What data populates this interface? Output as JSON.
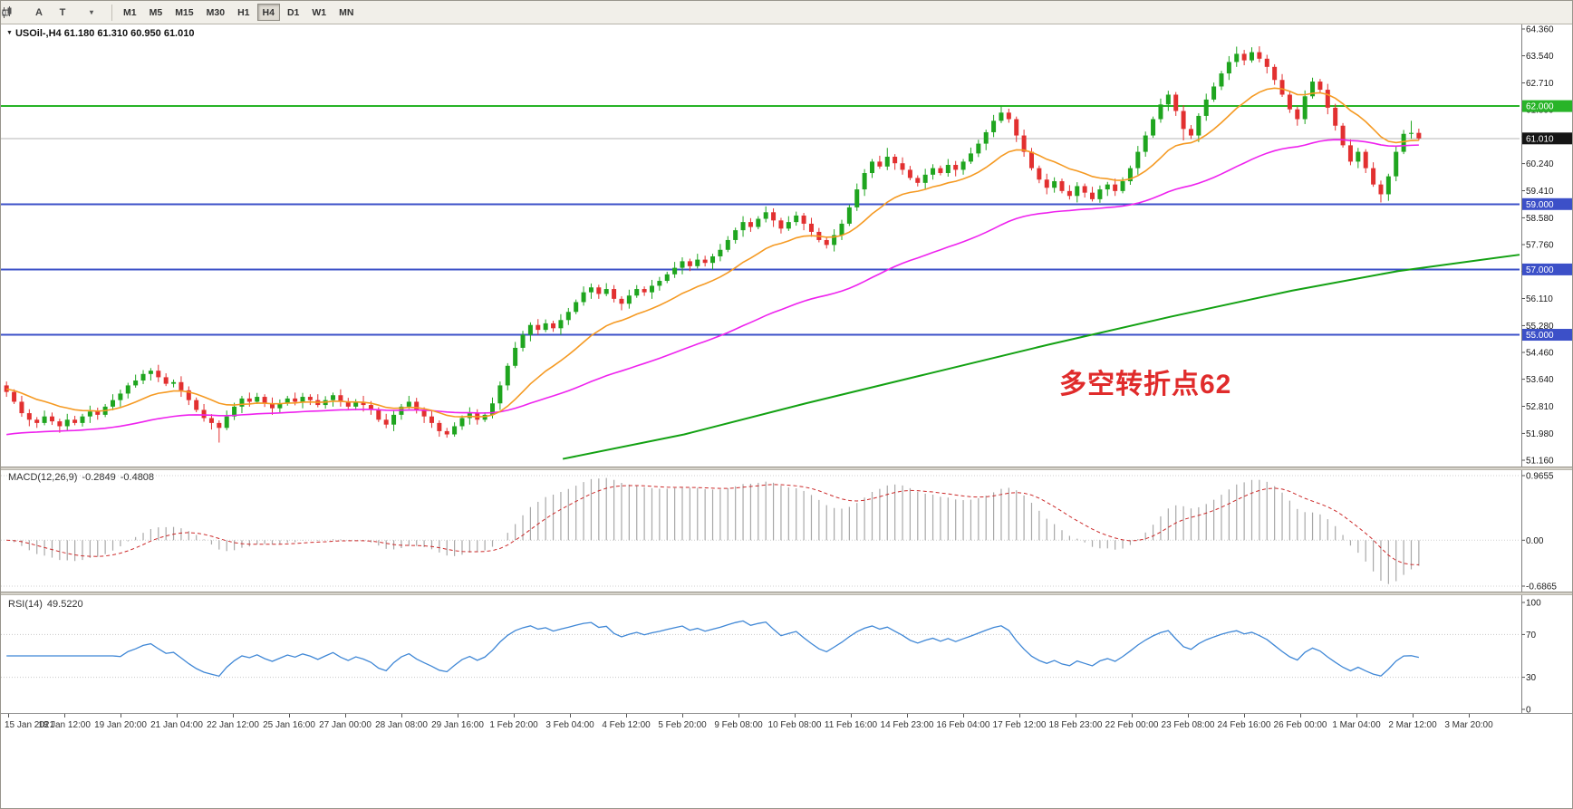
{
  "icons": {
    "title_marker": "▼",
    "caret": "▾"
  },
  "toolbar": {
    "tools": {
      "a_label": "A",
      "t_label": "T"
    },
    "timeframes": [
      "M1",
      "M5",
      "M15",
      "M30",
      "H1",
      "H4",
      "D1",
      "W1",
      "MN"
    ],
    "active_timeframe": "H4"
  },
  "main_chart": {
    "title": "USOil-,H4 61.180 61.310 60.950 61.010",
    "annotation": {
      "text": "多空转折点62",
      "color": "#e02b2b"
    }
  },
  "macd_panel": {
    "label": "MACD(12,26,9)",
    "main_value": "-0.2849",
    "signal_value": "-0.4808",
    "axis_labels": [
      "0.9655",
      "0.00",
      "-0.6865"
    ]
  },
  "rsi_panel": {
    "label": "RSI(14)",
    "value": "49.5220",
    "axis_labels": [
      "100",
      "70",
      "30",
      "0"
    ]
  },
  "time_axis": {
    "labels": [
      "15 Jan 2021",
      "18 Jan 12:00",
      "19 Jan 20:00",
      "21 Jan 04:00",
      "22 Jan 12:00",
      "25 Jan 16:00",
      "27 Jan 00:00",
      "28 Jan 08:00",
      "29 Jan 16:00",
      "1 Feb 20:00",
      "3 Feb 04:00",
      "4 Feb 12:00",
      "5 Feb 20:00",
      "9 Feb 08:00",
      "10 Feb 08:00",
      "11 Feb 16:00",
      "14 Feb 23:00",
      "16 Feb 04:00",
      "17 Feb 12:00",
      "18 Feb 23:00",
      "22 Feb 00:00",
      "23 Feb 08:00",
      "24 Feb 16:00",
      "26 Feb 00:00",
      "1 Mar 04:00",
      "2 Mar 12:00",
      "3 Mar 20:00"
    ]
  },
  "chart_data": {
    "type": "candlestick",
    "symbol": "USOil",
    "timeframe": "H4",
    "current": {
      "open": 61.18,
      "high": 61.31,
      "low": 60.95,
      "close": 61.01
    },
    "price_axis": {
      "min": 51.16,
      "max": 64.36,
      "ticks": [
        64.36,
        63.54,
        62.71,
        61.89,
        61.06,
        60.24,
        59.41,
        58.58,
        57.76,
        56.94,
        56.11,
        55.28,
        54.46,
        53.64,
        52.81,
        51.98,
        51.16
      ]
    },
    "horizontal_lines": [
      {
        "price": 62.0,
        "label": "62.000",
        "color": "#28b428"
      },
      {
        "price": 59.0,
        "label": "59.000",
        "color": "#3c50c8"
      },
      {
        "price": 57.0,
        "label": "57.000",
        "color": "#3c50c8"
      },
      {
        "price": 55.0,
        "label": "55.000",
        "color": "#3c50c8"
      }
    ],
    "current_price": {
      "value": 61.01,
      "label": "61.010",
      "tag_color": "#151515",
      "line_color": "#b4b4b4"
    },
    "up_color": "#1fa51f",
    "down_color": "#e23030",
    "candles": [
      [
        53.45,
        53.57,
        53.1,
        53.25
      ],
      [
        53.25,
        53.33,
        52.88,
        52.95
      ],
      [
        52.95,
        53.13,
        52.49,
        52.6
      ],
      [
        52.6,
        52.72,
        52.2,
        52.4
      ],
      [
        52.4,
        52.48,
        52.15,
        52.3
      ],
      [
        52.3,
        52.68,
        52.23,
        52.5
      ],
      [
        52.5,
        52.62,
        52.24,
        52.35
      ],
      [
        52.35,
        52.43,
        52.0,
        52.2
      ],
      [
        52.2,
        52.58,
        52.05,
        52.4
      ],
      [
        52.4,
        52.52,
        52.23,
        52.3
      ],
      [
        52.3,
        52.58,
        52.19,
        52.5
      ],
      [
        52.5,
        52.83,
        52.3,
        52.65
      ],
      [
        52.65,
        52.77,
        52.4,
        52.55
      ],
      [
        52.55,
        52.88,
        52.48,
        52.8
      ],
      [
        52.8,
        53.18,
        52.69,
        53.0
      ],
      [
        53.0,
        53.32,
        52.8,
        53.2
      ],
      [
        53.2,
        53.53,
        53.05,
        53.45
      ],
      [
        53.45,
        53.78,
        53.38,
        53.6
      ],
      [
        53.6,
        53.92,
        53.49,
        53.8
      ],
      [
        53.8,
        53.98,
        53.6,
        53.9
      ],
      [
        53.9,
        54.08,
        53.55,
        53.7
      ],
      [
        53.7,
        53.82,
        53.43,
        53.5
      ],
      [
        53.5,
        53.63,
        53.39,
        53.55
      ],
      [
        53.55,
        53.73,
        53.1,
        53.3
      ],
      [
        53.3,
        53.42,
        52.85,
        53.0
      ],
      [
        53.0,
        53.08,
        52.63,
        52.7
      ],
      [
        52.7,
        52.88,
        52.34,
        52.45
      ],
      [
        52.45,
        52.57,
        52.1,
        52.3
      ],
      [
        52.3,
        52.38,
        51.7,
        52.15
      ],
      [
        52.15,
        52.68,
        52.08,
        52.5
      ],
      [
        52.5,
        52.92,
        52.39,
        52.8
      ],
      [
        52.8,
        53.13,
        52.6,
        53.05
      ],
      [
        53.05,
        53.23,
        52.8,
        52.95
      ],
      [
        52.95,
        53.22,
        52.88,
        53.1
      ],
      [
        53.1,
        53.18,
        52.79,
        52.9
      ],
      [
        52.9,
        53.08,
        52.55,
        52.75
      ],
      [
        52.75,
        53.02,
        52.6,
        52.9
      ],
      [
        52.9,
        53.13,
        52.83,
        53.05
      ],
      [
        53.05,
        53.23,
        52.84,
        52.95
      ],
      [
        52.95,
        53.22,
        52.75,
        53.1
      ],
      [
        53.1,
        53.18,
        52.85,
        53.0
      ],
      [
        53.0,
        53.18,
        52.78,
        52.85
      ],
      [
        52.85,
        53.12,
        52.74,
        53.0
      ],
      [
        53.0,
        53.23,
        52.8,
        53.15
      ],
      [
        53.15,
        53.33,
        52.8,
        52.95
      ],
      [
        52.95,
        53.07,
        52.73,
        52.8
      ],
      [
        52.8,
        53.03,
        52.69,
        52.95
      ],
      [
        52.95,
        53.13,
        52.65,
        52.85
      ],
      [
        52.85,
        52.97,
        52.55,
        52.7
      ],
      [
        52.7,
        52.78,
        52.33,
        52.4
      ],
      [
        52.4,
        52.58,
        52.14,
        52.25
      ],
      [
        52.25,
        52.67,
        52.05,
        52.55
      ],
      [
        52.55,
        52.88,
        52.4,
        52.8
      ],
      [
        52.8,
        53.13,
        52.73,
        52.95
      ],
      [
        52.95,
        53.07,
        52.59,
        52.7
      ],
      [
        52.7,
        52.78,
        52.3,
        52.5
      ],
      [
        52.5,
        52.68,
        52.15,
        52.3
      ],
      [
        52.3,
        52.38,
        51.88,
        52.05
      ],
      [
        52.05,
        52.15,
        51.85,
        51.95
      ],
      [
        51.95,
        52.32,
        51.88,
        52.2
      ],
      [
        52.2,
        52.53,
        52.09,
        52.45
      ],
      [
        52.45,
        52.78,
        52.25,
        52.6
      ],
      [
        52.6,
        52.72,
        52.25,
        52.4
      ],
      [
        52.4,
        52.63,
        52.33,
        52.55
      ],
      [
        52.55,
        53.08,
        52.44,
        52.9
      ],
      [
        52.9,
        53.57,
        52.7,
        53.45
      ],
      [
        53.45,
        54.13,
        53.3,
        54.05
      ],
      [
        54.05,
        54.78,
        53.98,
        54.6
      ],
      [
        54.6,
        55.12,
        54.49,
        55.0
      ],
      [
        55.0,
        55.38,
        54.8,
        55.3
      ],
      [
        55.3,
        55.48,
        55.0,
        55.15
      ],
      [
        55.15,
        55.47,
        55.08,
        55.35
      ],
      [
        55.35,
        55.43,
        55.09,
        55.2
      ],
      [
        55.2,
        55.63,
        55.0,
        55.45
      ],
      [
        55.45,
        55.82,
        55.3,
        55.7
      ],
      [
        55.7,
        56.08,
        55.63,
        56.0
      ],
      [
        56.0,
        56.48,
        55.89,
        56.3
      ],
      [
        56.3,
        56.57,
        56.1,
        56.45
      ],
      [
        56.45,
        56.53,
        56.1,
        56.25
      ],
      [
        56.25,
        56.58,
        56.18,
        56.4
      ],
      [
        56.4,
        56.52,
        55.99,
        56.1
      ],
      [
        56.1,
        56.18,
        55.75,
        55.95
      ],
      [
        55.95,
        56.38,
        55.8,
        56.2
      ],
      [
        56.2,
        56.52,
        56.13,
        56.4
      ],
      [
        56.4,
        56.48,
        56.19,
        56.3
      ],
      [
        56.3,
        56.68,
        56.1,
        56.5
      ],
      [
        56.5,
        56.77,
        56.35,
        56.65
      ],
      [
        56.65,
        56.93,
        56.58,
        56.85
      ],
      [
        56.85,
        57.23,
        56.74,
        57.05
      ],
      [
        57.05,
        57.37,
        56.85,
        57.25
      ],
      [
        57.25,
        57.33,
        56.95,
        57.1
      ],
      [
        57.1,
        57.48,
        57.03,
        57.3
      ],
      [
        57.3,
        57.42,
        57.09,
        57.2
      ],
      [
        57.2,
        57.48,
        57.0,
        57.4
      ],
      [
        57.4,
        57.78,
        57.25,
        57.6
      ],
      [
        57.6,
        58.02,
        57.53,
        57.9
      ],
      [
        57.9,
        58.28,
        57.79,
        58.2
      ],
      [
        58.2,
        58.63,
        58.0,
        58.45
      ],
      [
        58.45,
        58.57,
        58.15,
        58.3
      ],
      [
        58.3,
        58.63,
        58.23,
        58.55
      ],
      [
        58.55,
        58.93,
        58.44,
        58.75
      ],
      [
        58.75,
        58.87,
        58.3,
        58.5
      ],
      [
        58.5,
        58.58,
        58.1,
        58.25
      ],
      [
        58.25,
        58.63,
        58.18,
        58.45
      ],
      [
        58.45,
        58.77,
        58.34,
        58.65
      ],
      [
        58.65,
        58.73,
        58.2,
        58.4
      ],
      [
        58.4,
        58.58,
        58.0,
        58.15
      ],
      [
        58.15,
        58.27,
        57.83,
        57.9
      ],
      [
        57.9,
        57.98,
        57.64,
        57.75
      ],
      [
        57.75,
        58.23,
        57.55,
        58.05
      ],
      [
        58.05,
        58.52,
        57.9,
        58.4
      ],
      [
        58.4,
        58.98,
        58.33,
        58.9
      ],
      [
        58.9,
        59.63,
        58.79,
        59.45
      ],
      [
        59.45,
        60.07,
        59.25,
        59.95
      ],
      [
        59.95,
        60.38,
        59.8,
        60.3
      ],
      [
        60.3,
        60.48,
        60.08,
        60.15
      ],
      [
        60.15,
        60.72,
        60.04,
        60.45
      ],
      [
        60.45,
        60.53,
        60.05,
        60.25
      ],
      [
        60.25,
        60.43,
        59.9,
        60.05
      ],
      [
        60.05,
        60.17,
        59.73,
        59.8
      ],
      [
        59.8,
        59.88,
        59.54,
        59.65
      ],
      [
        59.65,
        60.08,
        59.45,
        59.9
      ],
      [
        59.9,
        60.22,
        59.75,
        60.1
      ],
      [
        60.1,
        60.18,
        59.88,
        59.95
      ],
      [
        59.95,
        60.38,
        59.84,
        60.2
      ],
      [
        60.2,
        60.32,
        59.85,
        60.05
      ],
      [
        60.05,
        60.38,
        59.9,
        60.3
      ],
      [
        60.3,
        60.73,
        60.23,
        60.55
      ],
      [
        60.55,
        60.97,
        60.44,
        60.85
      ],
      [
        60.85,
        61.28,
        60.65,
        61.2
      ],
      [
        61.2,
        61.73,
        61.05,
        61.55
      ],
      [
        61.55,
        62.0,
        61.48,
        61.8
      ],
      [
        61.8,
        61.92,
        61.49,
        61.6
      ],
      [
        61.6,
        61.68,
        60.9,
        61.1
      ],
      [
        61.1,
        61.28,
        60.45,
        60.6
      ],
      [
        60.6,
        60.72,
        60.03,
        60.1
      ],
      [
        60.1,
        60.18,
        59.64,
        59.75
      ],
      [
        59.75,
        59.93,
        59.3,
        59.5
      ],
      [
        59.5,
        59.82,
        59.35,
        59.7
      ],
      [
        59.7,
        59.78,
        59.33,
        59.4
      ],
      [
        59.4,
        59.58,
        59.14,
        59.25
      ],
      [
        59.25,
        59.67,
        59.05,
        59.55
      ],
      [
        59.55,
        59.63,
        59.2,
        59.35
      ],
      [
        59.35,
        59.53,
        59.08,
        59.15
      ],
      [
        59.15,
        59.57,
        59.04,
        59.45
      ],
      [
        59.45,
        59.68,
        59.25,
        59.6
      ],
      [
        59.6,
        59.78,
        59.25,
        59.4
      ],
      [
        59.4,
        59.82,
        59.33,
        59.7
      ],
      [
        59.7,
        60.18,
        59.59,
        60.1
      ],
      [
        60.1,
        60.78,
        59.9,
        60.6
      ],
      [
        60.6,
        61.22,
        60.45,
        61.1
      ],
      [
        61.1,
        61.68,
        61.03,
        61.6
      ],
      [
        61.6,
        62.23,
        61.49,
        62.05
      ],
      [
        62.05,
        62.47,
        61.85,
        62.35
      ],
      [
        62.35,
        62.43,
        61.7,
        61.85
      ],
      [
        61.85,
        62.03,
        60.95,
        61.3
      ],
      [
        61.3,
        61.42,
        60.99,
        61.1
      ],
      [
        61.1,
        61.78,
        60.9,
        61.7
      ],
      [
        61.7,
        62.38,
        61.55,
        62.2
      ],
      [
        62.2,
        62.72,
        62.13,
        62.6
      ],
      [
        62.6,
        63.08,
        62.49,
        63.0
      ],
      [
        63.0,
        63.53,
        62.8,
        63.35
      ],
      [
        63.35,
        63.82,
        63.2,
        63.6
      ],
      [
        63.6,
        63.72,
        63.25,
        63.4
      ],
      [
        63.4,
        63.8,
        63.33,
        63.65
      ],
      [
        63.65,
        63.83,
        63.34,
        63.45
      ],
      [
        63.45,
        63.57,
        63.0,
        63.2
      ],
      [
        63.2,
        63.28,
        62.65,
        62.8
      ],
      [
        62.8,
        62.98,
        62.28,
        62.35
      ],
      [
        62.35,
        62.47,
        61.79,
        61.9
      ],
      [
        61.9,
        61.98,
        61.4,
        61.6
      ],
      [
        61.6,
        62.48,
        61.45,
        62.3
      ],
      [
        62.3,
        62.87,
        62.23,
        62.75
      ],
      [
        62.75,
        62.83,
        62.39,
        62.5
      ],
      [
        62.5,
        62.68,
        61.75,
        61.95
      ],
      [
        61.95,
        62.07,
        61.25,
        61.4
      ],
      [
        61.4,
        61.48,
        60.73,
        60.8
      ],
      [
        60.8,
        60.98,
        60.19,
        60.3
      ],
      [
        60.3,
        60.72,
        60.1,
        60.6
      ],
      [
        60.6,
        60.68,
        59.95,
        60.1
      ],
      [
        60.1,
        60.28,
        59.53,
        59.6
      ],
      [
        59.6,
        59.72,
        59.05,
        59.3
      ],
      [
        59.3,
        59.93,
        59.1,
        59.85
      ],
      [
        59.85,
        60.78,
        59.7,
        60.6
      ],
      [
        60.6,
        61.27,
        60.53,
        61.15
      ],
      [
        61.15,
        61.55,
        61.0,
        61.18
      ],
      [
        61.18,
        61.31,
        60.95,
        61.01
      ]
    ],
    "ma_fast": {
      "period": 16,
      "seed": 53.35,
      "color": "#f59a23"
    },
    "ma_medium": {
      "period": 60,
      "seed": 51.9,
      "color": "#ee22ee"
    },
    "ma_slow": {
      "color": "#13a113",
      "points": [
        [
          0.37,
          51.2
        ],
        [
          0.45,
          51.95
        ],
        [
          0.53,
          52.9
        ],
        [
          0.61,
          53.8
        ],
        [
          0.69,
          54.7
        ],
        [
          0.77,
          55.55
        ],
        [
          0.85,
          56.35
        ],
        [
          0.92,
          56.95
        ],
        [
          1.0,
          57.45
        ]
      ]
    },
    "macd": {
      "fast": 12,
      "slow": 26,
      "signal": 9,
      "range": [
        -0.6865,
        0.9655
      ],
      "bar_color": "#a8a8a8",
      "signal_color": "#cc2a2a"
    },
    "rsi": {
      "period": 14,
      "levels": [
        70,
        30
      ],
      "color": "#3f87d6",
      "range": [
        0,
        100
      ]
    }
  }
}
